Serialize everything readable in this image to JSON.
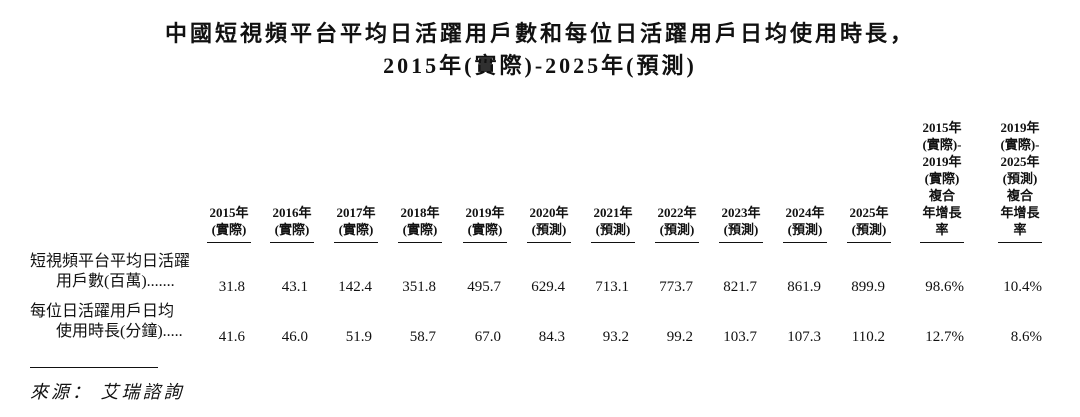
{
  "header": {
    "title": [
      "中國短視頻平台平均日活躍用戶數和每位日活躍用戶日均使用時長，",
      "2015年(實際)-2025年(預測)"
    ]
  },
  "table": {
    "columns": [
      [
        "2015年",
        "(實際)"
      ],
      [
        "2016年",
        "(實際)"
      ],
      [
        "2017年",
        "(實際)"
      ],
      [
        "2018年",
        "(實際)"
      ],
      [
        "2019年",
        "(實際)"
      ],
      [
        "2020年",
        "(預測)"
      ],
      [
        "2021年",
        "(預測)"
      ],
      [
        "2022年",
        "(預測)"
      ],
      [
        "2023年",
        "(預測)"
      ],
      [
        "2024年",
        "(預測)"
      ],
      [
        "2025年",
        "(預測)"
      ],
      [
        "2015年",
        "(實際)-",
        "2019年",
        "(實際)",
        "複合",
        "年增長率"
      ],
      [
        "2019年",
        "(實際)-",
        "2025年",
        "(預測)",
        "複合",
        "年增長率"
      ]
    ],
    "rows": [
      {
        "label": [
          "短視頻平台平均日活躍",
          "用戶數(百萬)......."
        ],
        "cells": [
          "31.8",
          "43.1",
          "142.4",
          "351.8",
          "495.7",
          "629.4",
          "713.1",
          "773.7",
          "821.7",
          "861.9",
          "899.9",
          "98.6%",
          "10.4%"
        ]
      },
      {
        "label": [
          "每位日活躍用戶日均",
          "使用時長(分鐘)....."
        ],
        "cells": [
          "41.6",
          "46.0",
          "51.9",
          "58.7",
          "67.0",
          "84.3",
          "93.2",
          "99.2",
          "103.7",
          "107.3",
          "110.2",
          "12.7%",
          "8.6%"
        ]
      }
    ]
  },
  "source": {
    "label": "來源：",
    "text": "艾瑞諮詢"
  }
}
